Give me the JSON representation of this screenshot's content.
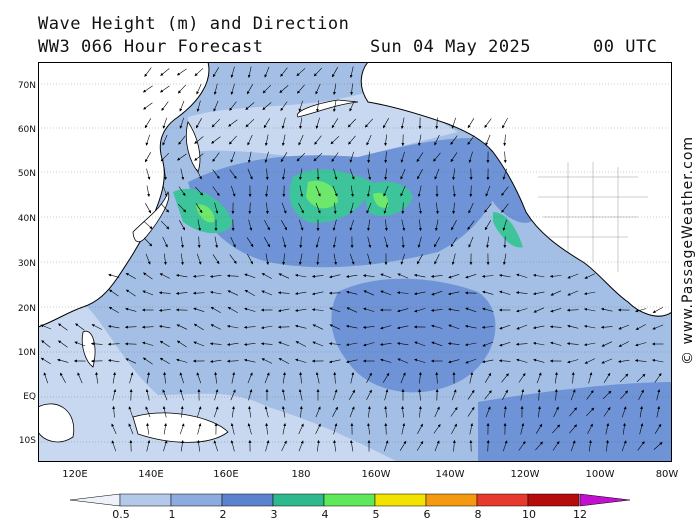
{
  "header": {
    "title": "Wave Height (m) and Direction",
    "model": "WW3 066 Hour Forecast",
    "date": "Sun 04 May 2025",
    "time": "00 UTC"
  },
  "map": {
    "lat_labels": [
      "70N",
      "60N",
      "50N",
      "40N",
      "30N",
      "20N",
      "10N",
      "EQ",
      "10S"
    ],
    "lon_labels": [
      "120E",
      "140E",
      "160E",
      "180",
      "160W",
      "140W",
      "120W",
      "100W",
      "80W"
    ],
    "ocean_colors": {
      "lt_0_5": "#e4ecf8",
      "h0_5_1": "#c8d8f0",
      "h1_2": "#a4bfe6",
      "h2_3": "#6e93d6",
      "h3_4": "#3ec49a",
      "h4_5": "#6ee86c"
    },
    "land_color": "#ffffff",
    "credit": "© www.PassageWeather.com"
  },
  "colorbar": {
    "labels": [
      "0.5",
      "1",
      "2",
      "3",
      "4",
      "5",
      "6",
      "8",
      "10",
      "12"
    ],
    "colors": [
      "#dfe6f5",
      "#b4c8ea",
      "#8eabdf",
      "#5c82cf",
      "#2eb88e",
      "#5ee85a",
      "#f2e200",
      "#f39a12",
      "#e63a2e",
      "#b50d0d",
      "#c210d0"
    ]
  }
}
